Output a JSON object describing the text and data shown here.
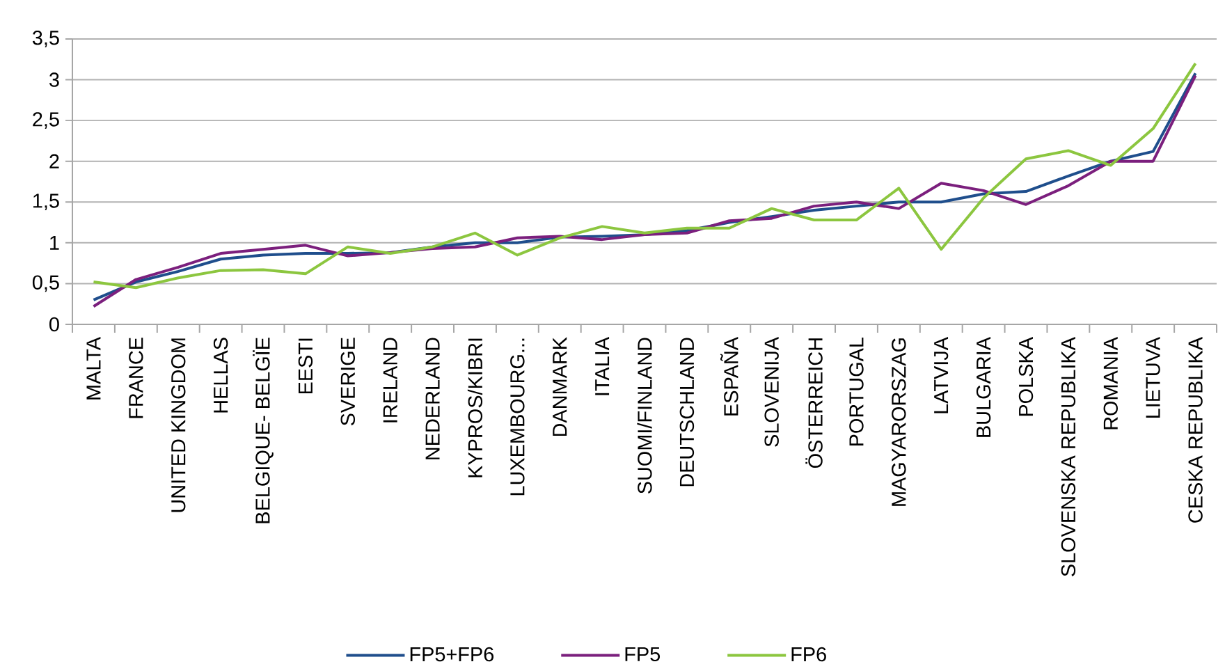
{
  "chart_data": {
    "type": "line",
    "categories": [
      "MALTA",
      "FRANCE",
      "UNITED KINGDOM",
      "HELLAS",
      "BELGIQUE- BELGÏE",
      "EESTI",
      "SVERIGE",
      "IRELAND",
      "NEDERLAND",
      "KYPROS/KIBRI",
      "LUXEMBOURG...",
      "DANMARK",
      "ITALIA",
      "SUOMI/FINLAND",
      "DEUTSCHLAND",
      "ESPAÑA",
      "SLOVENIJA",
      "ÖSTERREICH",
      "PORTUGAL",
      "MAGYARORSZAG",
      "LATVIJA",
      "BULGARIA",
      "POLSKA",
      "SLOVENSKA  REPUBLIKA",
      "ROMANIA",
      "LIETUVA",
      "CESKA REPUBLIKA"
    ],
    "series": [
      {
        "name": "FP5+FP6",
        "color": "#1f4e8c",
        "values": [
          0.3,
          0.52,
          0.65,
          0.8,
          0.85,
          0.87,
          0.87,
          0.88,
          0.95,
          1.0,
          1.0,
          1.07,
          1.08,
          1.1,
          1.15,
          1.25,
          1.32,
          1.4,
          1.45,
          1.5,
          1.5,
          1.6,
          1.63,
          1.82,
          2.0,
          2.12,
          3.08
        ]
      },
      {
        "name": "FP5",
        "color": "#7b1f7d",
        "values": [
          0.22,
          0.55,
          0.7,
          0.87,
          0.92,
          0.97,
          0.84,
          0.88,
          0.93,
          0.95,
          1.06,
          1.08,
          1.04,
          1.1,
          1.12,
          1.27,
          1.3,
          1.45,
          1.5,
          1.42,
          1.73,
          1.64,
          1.47,
          1.7,
          2.0,
          2.0,
          3.05
        ]
      },
      {
        "name": "FP6",
        "color": "#8cc63f",
        "values": [
          0.52,
          0.45,
          0.57,
          0.66,
          0.67,
          0.62,
          0.95,
          0.87,
          0.95,
          1.12,
          0.85,
          1.06,
          1.2,
          1.12,
          1.18,
          1.18,
          1.42,
          1.28,
          1.28,
          1.67,
          0.92,
          1.55,
          2.03,
          2.13,
          1.95,
          2.4,
          3.2
        ]
      }
    ],
    "ylim": [
      0,
      3.5
    ],
    "yticks": [
      0,
      {
        "value": 0.5,
        "label": "0,5"
      },
      1,
      {
        "value": 1.5,
        "label": "1,5"
      },
      2,
      {
        "value": 2.5,
        "label": "2,5"
      },
      3,
      {
        "value": 3.5,
        "label": "3,5"
      }
    ],
    "grid": "y",
    "legend": "bottom",
    "marker": "none",
    "line_style": "solid"
  }
}
